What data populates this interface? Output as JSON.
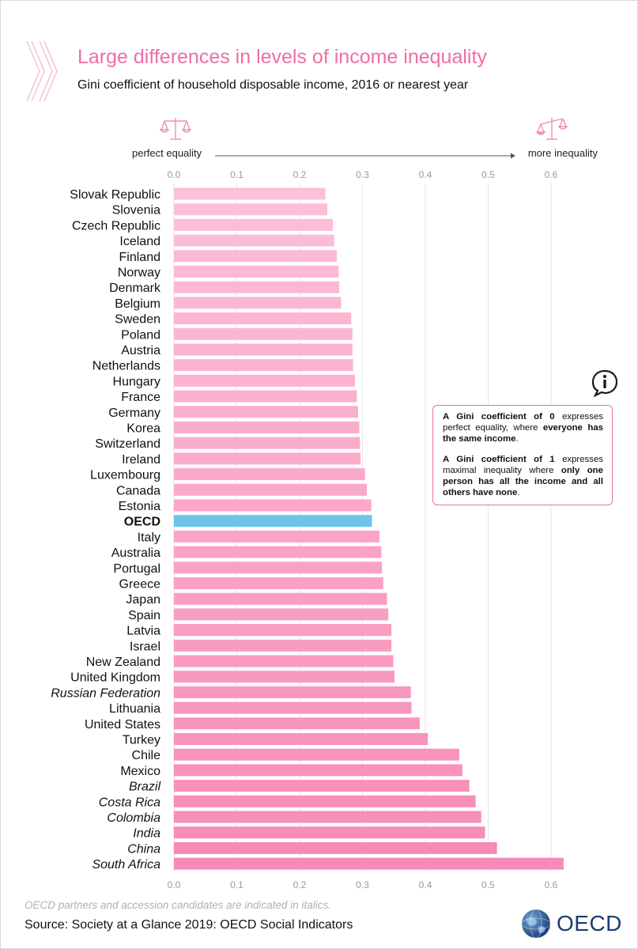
{
  "header": {
    "title": "Large differences in levels of income inequality",
    "subtitle": "Gini coefficient of household disposable income, 2016 or nearest year"
  },
  "scale_labels": {
    "left": "perfect equality",
    "right": "more inequality",
    "icons": [
      "balance-scale-icon",
      "unbalanced-scale-icon"
    ]
  },
  "info_box": {
    "icon": "info-icon",
    "p1_bold1": "A Gini coefficient of 0",
    "p1_text1": " expresses perfect equality, where ",
    "p1_bold2": "everyone has the same income",
    "p1_text2": ".",
    "p2_bold1": "A Gini coefficient of 1",
    "p2_text1": " expresses maximal inequality where ",
    "p2_bold2": "only one person has all the income and all others have none",
    "p2_text2": "."
  },
  "footer": {
    "note": "OECD partners and accession candidates are indicated in italics.",
    "source": "Source: Society at a Glance 2019: OECD Social Indicators",
    "logo_text": "OECD"
  },
  "colors": {
    "title": "#ec6fa6",
    "bar_light": "#fdc0d8",
    "bar_dark": "#f78ab6",
    "oecd_bar": "#6cc4e8",
    "grid": "#e6e6e6",
    "logo": "#1b3c73"
  },
  "chart_data": {
    "type": "bar",
    "orientation": "horizontal",
    "xlim": [
      0,
      0.6
    ],
    "xticks": [
      "0.0",
      "0.1",
      "0.2",
      "0.3",
      "0.4",
      "0.5",
      "0.6"
    ],
    "grid": true,
    "categories": [
      "Slovak Republic",
      "Slovenia",
      "Czech Republic",
      "Iceland",
      "Finland",
      "Norway",
      "Denmark",
      "Belgium",
      "Sweden",
      "Poland",
      "Austria",
      "Netherlands",
      "Hungary",
      "France",
      "Germany",
      "Korea",
      "Switzerland",
      "Ireland",
      "Luxembourg",
      "Canada",
      "Estonia",
      "OECD",
      "Italy",
      "Australia",
      "Portugal",
      "Greece",
      "Japan",
      "Spain",
      "Latvia",
      "Israel",
      "New Zealand",
      "United Kingdom",
      "Russian Federation",
      "Lithuania",
      "United States",
      "Turkey",
      "Chile",
      "Mexico",
      "Brazil",
      "Costa Rica",
      "Colombia",
      "India",
      "China",
      "South Africa"
    ],
    "values": [
      0.241,
      0.244,
      0.253,
      0.255,
      0.259,
      0.262,
      0.263,
      0.266,
      0.282,
      0.284,
      0.284,
      0.285,
      0.288,
      0.291,
      0.293,
      0.295,
      0.296,
      0.297,
      0.304,
      0.307,
      0.314,
      0.315,
      0.327,
      0.33,
      0.331,
      0.333,
      0.339,
      0.341,
      0.346,
      0.346,
      0.349,
      0.351,
      0.377,
      0.378,
      0.391,
      0.404,
      0.454,
      0.459,
      0.47,
      0.48,
      0.489,
      0.495,
      0.514,
      0.62
    ],
    "italic": [
      "Russian Federation",
      "Brazil",
      "Costa Rica",
      "Colombia",
      "India",
      "China",
      "South Africa"
    ],
    "highlight": "OECD"
  }
}
